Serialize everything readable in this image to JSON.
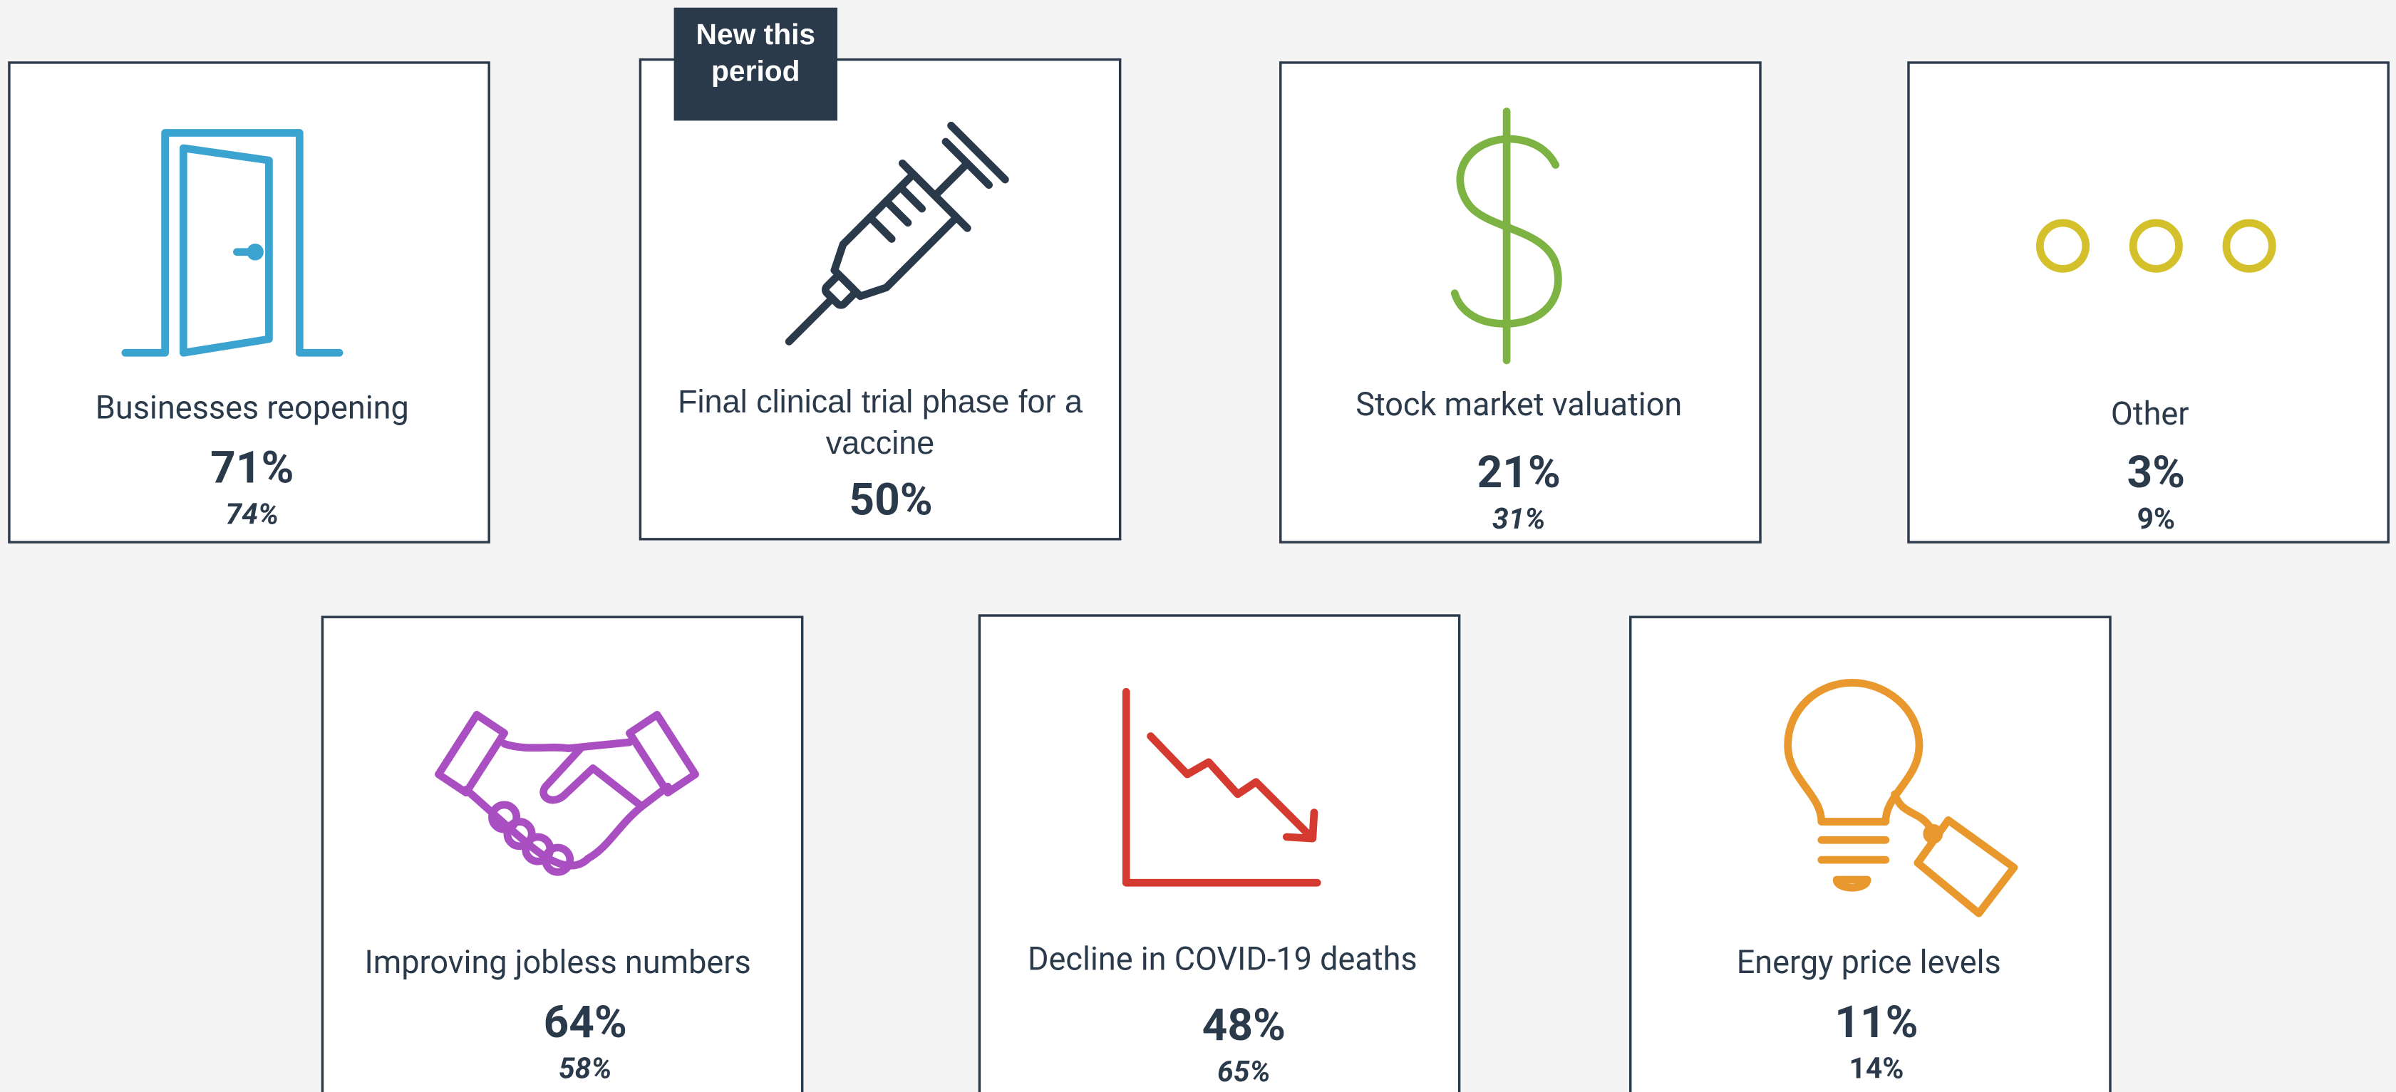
{
  "badge": "New this period",
  "cards": [
    {
      "label": "Businesses reopening",
      "value": "71%",
      "previous": "74%"
    },
    {
      "label": "Final clinical trial phase for a vaccine",
      "value": "50%"
    },
    {
      "label": "Stock market valuation",
      "value": "21%",
      "previous": "31%"
    },
    {
      "label": "Other",
      "value": "3%",
      "previous": "9%"
    },
    {
      "label": "Improving jobless numbers",
      "value": "64%",
      "previous": "58%"
    },
    {
      "label": "Decline in COVID-19 deaths",
      "value": "48%",
      "previous": "65%"
    },
    {
      "label": "Energy price levels",
      "value": "11%",
      "previous": "14%"
    }
  ]
}
